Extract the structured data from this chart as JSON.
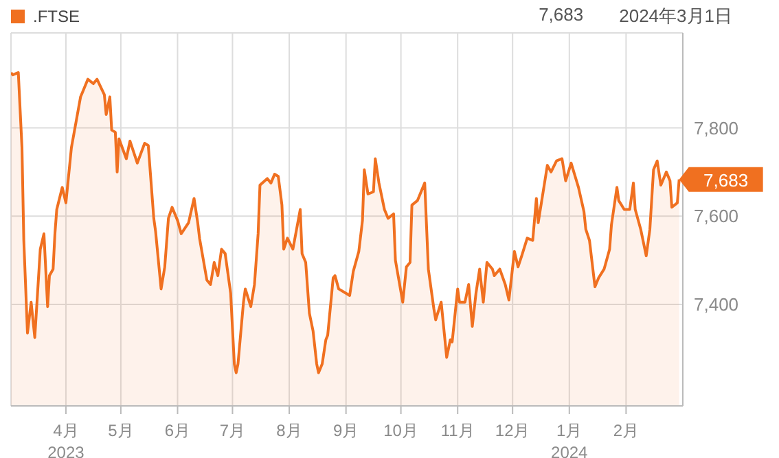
{
  "chart_data": {
    "type": "area",
    "annotations": [
      "7,683",
      "2024年3月1日"
    ],
    "x": [
      "2023-03-02",
      "2023-03-03",
      "2023-03-06",
      "2023-03-08",
      "2023-03-09",
      "2023-03-11",
      "2023-03-13",
      "2023-03-15",
      "2023-03-18",
      "2023-03-20",
      "2023-03-22",
      "2023-03-23",
      "2023-03-25",
      "2023-03-26",
      "2023-03-27",
      "2023-03-30",
      "2023-04-01",
      "2023-04-04",
      "2023-04-09",
      "2023-04-10",
      "2023-04-13",
      "2023-04-16",
      "2023-04-18",
      "2023-04-22",
      "2023-04-23",
      "2023-04-25",
      "2023-04-26",
      "2023-04-28",
      "2023-04-29",
      "2023-04-30",
      "2023-05-04",
      "2023-05-06",
      "2023-05-10",
      "2023-05-14",
      "2023-05-16",
      "2023-05-19",
      "2023-05-20",
      "2023-05-23",
      "2023-05-25",
      "2023-05-27",
      "2023-05-29",
      "2023-06-01",
      "2023-06-03",
      "2023-06-07",
      "2023-06-10",
      "2023-06-12",
      "2023-06-13",
      "2023-06-17",
      "2023-06-19",
      "2023-06-21",
      "2023-06-23",
      "2023-06-25",
      "2023-06-27",
      "2023-06-30",
      "2023-07-02",
      "2023-07-03",
      "2023-07-04",
      "2023-07-07",
      "2023-07-08",
      "2023-07-11",
      "2023-07-13",
      "2023-07-15",
      "2023-07-16",
      "2023-07-20",
      "2023-07-22",
      "2023-07-24",
      "2023-07-26",
      "2023-07-28",
      "2023-07-29",
      "2023-07-31",
      "2023-08-03",
      "2023-08-07",
      "2023-08-08",
      "2023-08-10",
      "2023-08-12",
      "2023-08-14",
      "2023-08-16",
      "2023-08-17",
      "2023-08-19",
      "2023-08-21",
      "2023-08-22",
      "2023-08-25",
      "2023-08-26",
      "2023-08-28",
      "2023-09-01",
      "2023-09-03",
      "2023-09-05",
      "2023-09-08",
      "2023-09-10",
      "2023-09-11",
      "2023-09-13",
      "2023-09-16",
      "2023-09-17",
      "2023-09-19",
      "2023-09-22",
      "2023-09-24",
      "2023-09-27",
      "2023-09-28",
      "2023-10-02",
      "2023-10-04",
      "2023-10-06",
      "2023-10-07",
      "2023-10-10",
      "2023-10-14",
      "2023-10-16",
      "2023-10-19",
      "2023-10-20",
      "2023-10-23",
      "2023-10-26",
      "2023-10-28",
      "2023-10-29",
      "2023-11-01",
      "2023-11-02",
      "2023-11-05",
      "2023-11-07",
      "2023-11-09",
      "2023-11-11",
      "2023-11-13",
      "2023-11-15",
      "2023-11-17",
      "2023-11-20",
      "2023-11-21",
      "2023-11-24",
      "2023-11-27",
      "2023-11-29",
      "2023-12-02",
      "2023-12-04",
      "2023-12-06",
      "2023-12-09",
      "2023-12-12",
      "2023-12-14",
      "2023-12-15",
      "2023-12-20",
      "2023-12-22",
      "2023-12-25",
      "2023-12-28",
      "2023-12-30",
      "2024-01-02",
      "2024-01-06",
      "2024-01-09",
      "2024-01-10",
      "2024-01-12",
      "2024-01-15",
      "2024-01-17",
      "2024-01-20",
      "2024-01-23",
      "2024-01-24",
      "2024-01-27",
      "2024-01-28",
      "2024-01-31",
      "2024-02-03",
      "2024-02-05",
      "2024-02-06",
      "2024-02-09",
      "2024-02-12",
      "2024-02-14",
      "2024-02-16",
      "2024-02-18",
      "2024-02-20",
      "2024-02-23",
      "2024-02-25",
      "2024-02-26",
      "2024-02-29",
      "2024-03-01"
    ],
    "series": [
      {
        "name": ".FTSE",
        "color": "#f07020",
        "values": [
          7925,
          7920,
          7925,
          7755,
          7545,
          7335,
          7405,
          7325,
          7525,
          7560,
          7395,
          7465,
          7480,
          7560,
          7615,
          7665,
          7630,
          7755,
          7870,
          7880,
          7910,
          7900,
          7910,
          7875,
          7830,
          7870,
          7795,
          7790,
          7700,
          7775,
          7730,
          7770,
          7720,
          7765,
          7760,
          7595,
          7565,
          7435,
          7485,
          7595,
          7620,
          7590,
          7560,
          7585,
          7640,
          7585,
          7550,
          7455,
          7445,
          7495,
          7465,
          7525,
          7515,
          7425,
          7265,
          7245,
          7265,
          7405,
          7435,
          7395,
          7445,
          7560,
          7670,
          7685,
          7675,
          7695,
          7690,
          7625,
          7525,
          7550,
          7525,
          7615,
          7515,
          7495,
          7380,
          7340,
          7265,
          7245,
          7265,
          7320,
          7330,
          7460,
          7465,
          7435,
          7425,
          7420,
          7475,
          7520,
          7590,
          7705,
          7650,
          7655,
          7730,
          7675,
          7615,
          7595,
          7605,
          7500,
          7405,
          7485,
          7495,
          7625,
          7635,
          7675,
          7480,
          7390,
          7365,
          7405,
          7280,
          7320,
          7315,
          7435,
          7405,
          7405,
          7445,
          7350,
          7425,
          7480,
          7405,
          7495,
          7480,
          7465,
          7480,
          7445,
          7410,
          7520,
          7485,
          7510,
          7550,
          7545,
          7640,
          7585,
          7715,
          7700,
          7725,
          7730,
          7680,
          7720,
          7665,
          7610,
          7570,
          7545,
          7440,
          7460,
          7480,
          7525,
          7580,
          7665,
          7635,
          7615,
          7615,
          7675,
          7615,
          7570,
          7510,
          7570,
          7705,
          7725,
          7670,
          7700,
          7680,
          7620,
          7630,
          7683
        ],
        "value_labels": [
          null,
          null,
          null,
          null,
          null,
          null,
          null,
          null,
          null,
          null,
          null,
          null,
          null,
          null,
          null,
          null,
          null,
          null,
          null,
          null,
          null,
          null,
          null,
          null,
          null,
          null,
          null,
          null,
          null,
          null,
          null,
          null,
          null,
          null,
          null,
          null,
          null,
          null,
          null,
          null,
          null,
          null,
          null,
          null,
          null,
          null,
          null,
          null,
          null,
          null,
          null,
          null,
          null,
          null,
          null,
          null,
          null,
          null,
          null,
          null,
          null,
          null,
          null,
          null,
          null,
          null,
          null,
          null,
          null,
          null,
          null,
          null,
          null,
          null,
          null,
          null,
          null,
          null,
          null,
          null,
          null,
          null,
          null,
          null,
          null,
          null,
          null,
          null,
          null,
          null,
          null,
          null,
          null,
          null,
          null,
          null,
          null,
          null,
          null,
          null,
          null,
          null,
          null,
          null,
          null,
          null,
          null,
          null,
          null,
          null,
          null,
          null,
          null,
          null,
          null,
          null,
          null,
          null,
          null,
          null,
          null,
          null,
          null,
          null,
          null,
          null,
          null,
          null,
          null,
          null,
          null,
          null,
          null,
          null,
          null,
          null,
          null,
          null,
          null,
          null,
          null,
          null,
          null,
          null,
          null,
          null,
          null,
          null,
          null,
          null,
          null,
          null,
          null,
          null,
          null,
          null,
          null,
          null,
          null,
          null,
          null,
          null,
          null,
          "7,683"
        ]
      }
    ],
    "xlim": [
      "2023-03-02",
      "2024-03-03"
    ],
    "xticks": [
      {
        "value": "2023-04-01",
        "label": "4月\n2023"
      },
      {
        "value": "2023-05-01",
        "label": "5月"
      },
      {
        "value": "2023-06-01",
        "label": "6月"
      },
      {
        "value": "2023-07-01",
        "label": "7月"
      },
      {
        "value": "2023-08-01",
        "label": "8月"
      },
      {
        "value": "2023-09-01",
        "label": "9月"
      },
      {
        "value": "2023-10-01",
        "label": "10月"
      },
      {
        "value": "2023-11-01",
        "label": "11月"
      },
      {
        "value": "2023-12-01",
        "label": "12月"
      },
      {
        "value": "2024-01-01",
        "label": "1月\n2024"
      },
      {
        "value": "2024-02-01",
        "label": "2月"
      }
    ],
    "ylim": [
      7170,
      8015
    ],
    "yticks": [
      {
        "value": 7400,
        "label": "7,400"
      },
      {
        "value": 7600,
        "label": "7,600"
      },
      {
        "value": 7800,
        "label": "7,800"
      }
    ],
    "grid": true,
    "legend": "top left"
  }
}
